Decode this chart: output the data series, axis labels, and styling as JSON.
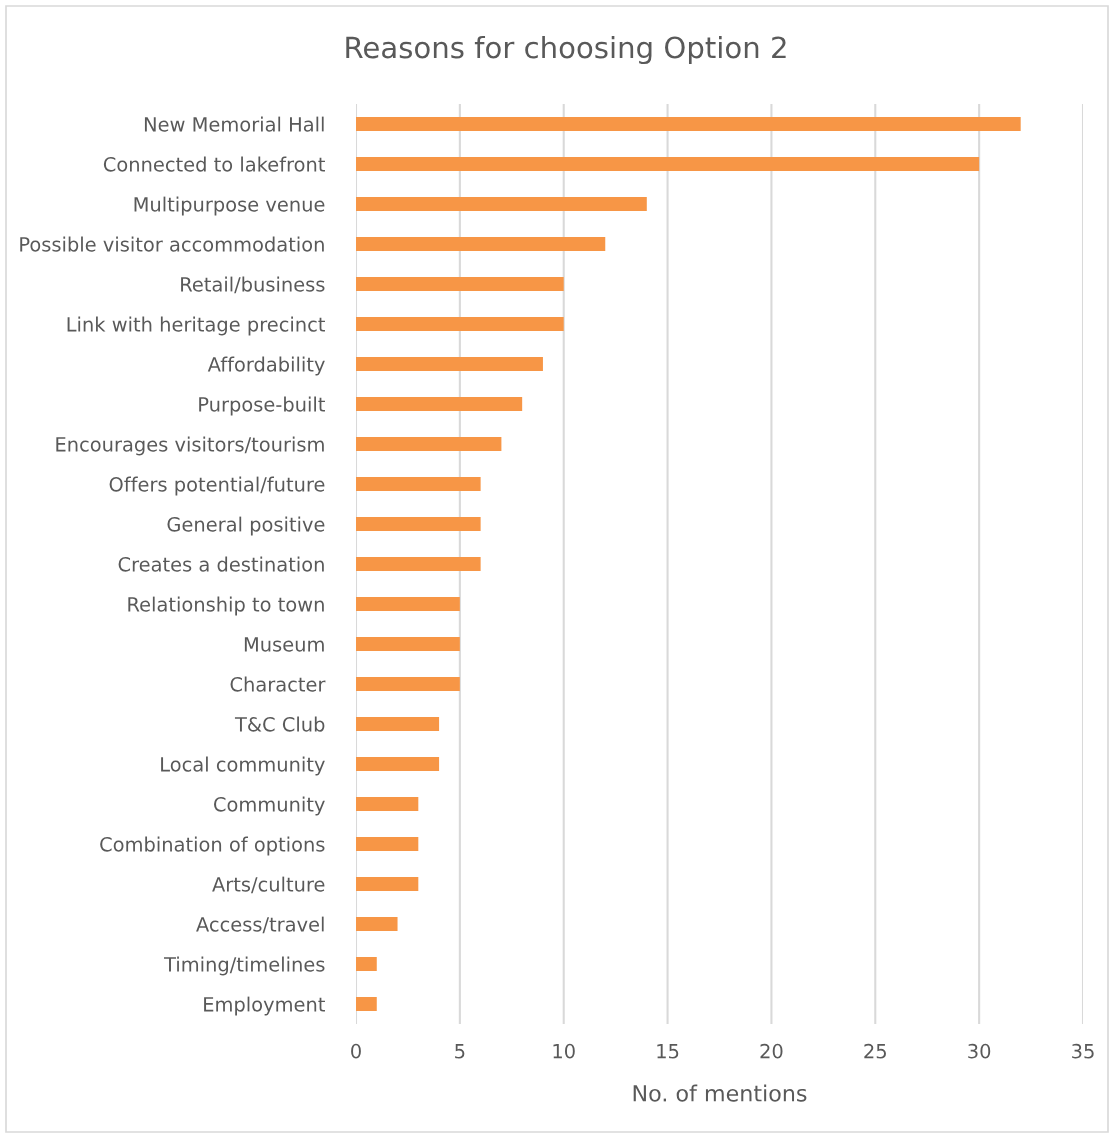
{
  "chart_data": {
    "type": "bar",
    "orientation": "horizontal",
    "title": "Reasons for choosing Option 2",
    "xlabel": "No. of mentions",
    "categories": [
      "New Memorial Hall",
      "Connected to lakefront",
      "Multipurpose venue",
      "Possible visitor accommodation",
      "Retail/business",
      "Link with heritage precinct",
      "Affordability",
      "Purpose-built",
      "Encourages visitors/tourism",
      "Offers potential/future",
      "General positive",
      "Creates a destination",
      "Relationship to town",
      "Museum",
      "Character",
      "T&C Club",
      "Local community",
      "Community",
      "Combination of options",
      "Arts/culture",
      "Access/travel",
      "Timing/timelines",
      "Employment"
    ],
    "values": [
      32,
      30,
      14,
      12,
      10,
      10,
      9,
      8,
      7,
      6,
      6,
      6,
      5,
      5,
      5,
      4,
      4,
      3,
      3,
      3,
      2,
      1,
      1
    ],
    "color": "#f79646",
    "xlim": [
      0,
      35
    ],
    "xticks": [
      0,
      5,
      10,
      15,
      20,
      25,
      30,
      35
    ],
    "grid": "x"
  }
}
